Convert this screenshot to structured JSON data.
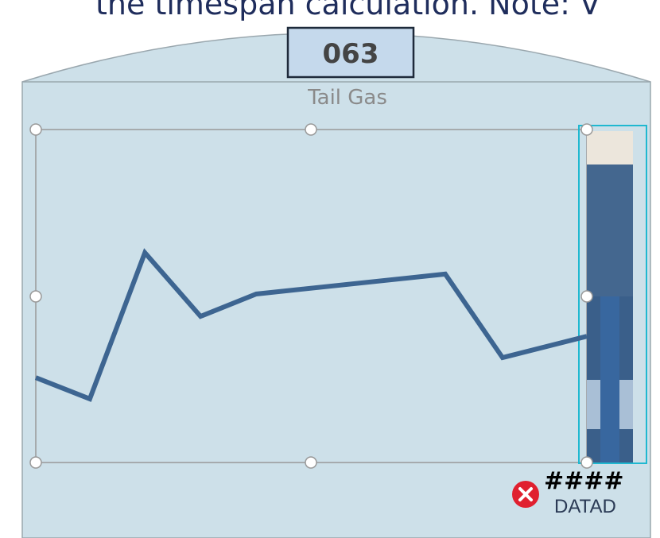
{
  "caption": "the timespan calculation. Note: V",
  "tag": "063",
  "label": "Tail Gas",
  "status": {
    "value_text": "####",
    "quality": "DATAD"
  },
  "trend": {
    "type": "line",
    "x": [
      0,
      9.8,
      19.8,
      29.9,
      40.0,
      74.3,
      84.7,
      100
    ],
    "values": [
      25.5,
      19.1,
      63.0,
      43.9,
      50.6,
      56.6,
      31.5,
      37.9
    ],
    "xlim": [
      0,
      100
    ],
    "ylim": [
      0,
      100
    ],
    "color": "#3d6591"
  }
}
